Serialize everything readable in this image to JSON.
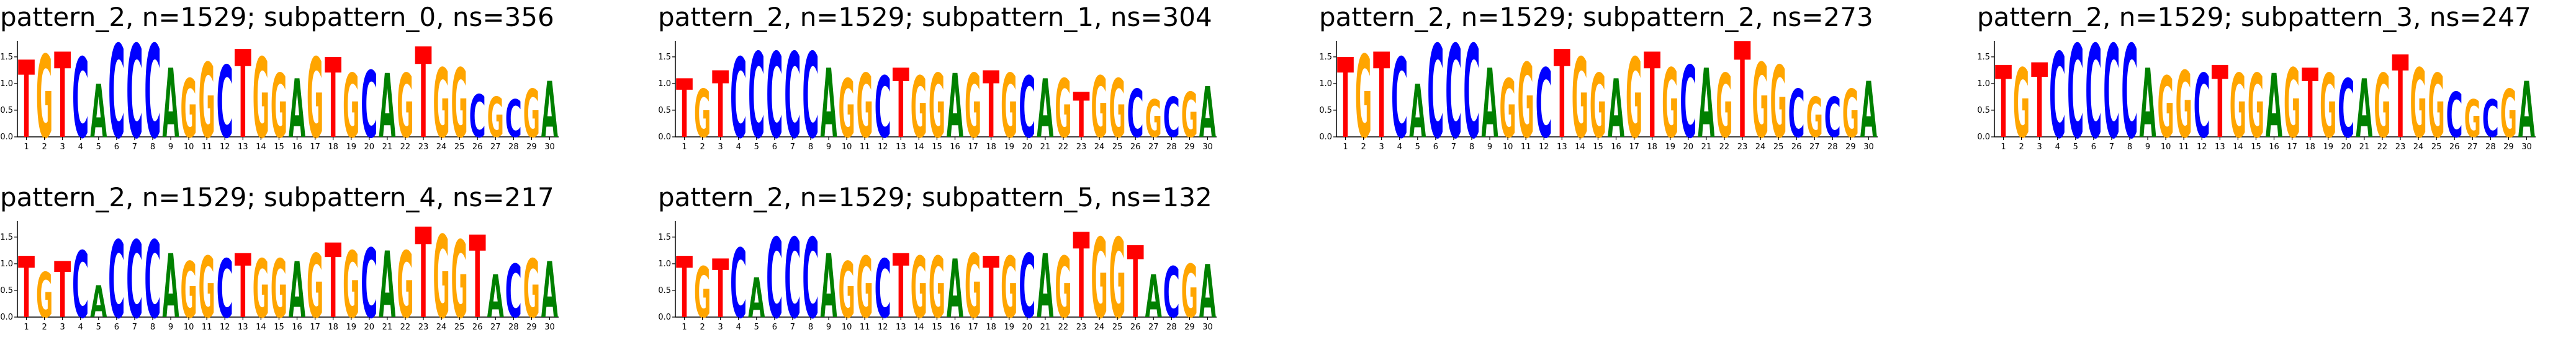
{
  "figure": {
    "colors": {
      "A": "#008000",
      "C": "#0000ff",
      "G": "#ffa500",
      "T": "#ff0000"
    }
  },
  "chart_data": [
    {
      "type": "sequence-logo",
      "title": "pattern_2, n=1529; subpattern_0, ns=356",
      "ylim": [
        0,
        1.8
      ],
      "yticks": [
        "0.0",
        "0.5",
        "1.0",
        "1.5"
      ],
      "positions": 30,
      "consensus": "TGTCACCCAGGCTGGAGTGCAGTGGCGCGA",
      "heights": [
        1.45,
        1.55,
        1.6,
        1.5,
        1.0,
        1.75,
        1.75,
        1.75,
        1.3,
        1.1,
        1.4,
        1.35,
        1.65,
        1.5,
        1.2,
        1.1,
        1.5,
        1.5,
        1.2,
        1.25,
        1.2,
        1.2,
        1.7,
        1.3,
        1.3,
        0.8,
        0.75,
        0.7,
        0.9,
        1.05
      ]
    },
    {
      "type": "sequence-logo",
      "title": "pattern_2, n=1529; subpattern_1, ns=304",
      "ylim": [
        0,
        1.8
      ],
      "yticks": [
        "0.0",
        "0.5",
        "1.0",
        "1.5"
      ],
      "positions": 30,
      "consensus": "TGTCCCCCAGGCTGGAGTGCAGTGGCGCGA",
      "heights": [
        1.1,
        0.9,
        1.25,
        1.5,
        1.6,
        1.6,
        1.6,
        1.6,
        1.3,
        1.1,
        1.2,
        1.15,
        1.3,
        1.15,
        1.2,
        1.2,
        1.2,
        1.25,
        1.2,
        1.15,
        1.1,
        1.1,
        0.85,
        1.15,
        1.1,
        0.9,
        0.7,
        0.75,
        0.85,
        0.95
      ]
    },
    {
      "type": "sequence-logo",
      "title": "pattern_2, n=1529; subpattern_2, ns=273",
      "ylim": [
        0,
        1.8
      ],
      "yticks": [
        "0.0",
        "0.5",
        "1.0",
        "1.5"
      ],
      "positions": 30,
      "consensus": "TGTCACCCAGGCTGGAGTGCAGTGGCGCGA",
      "heights": [
        1.5,
        1.55,
        1.6,
        1.5,
        1.0,
        1.75,
        1.75,
        1.75,
        1.3,
        1.1,
        1.4,
        1.3,
        1.65,
        1.5,
        1.2,
        1.1,
        1.5,
        1.6,
        1.3,
        1.35,
        1.3,
        1.2,
        1.8,
        1.4,
        1.35,
        0.9,
        0.75,
        0.75,
        0.9,
        1.05
      ]
    },
    {
      "type": "sequence-logo",
      "title": "pattern_2, n=1529; subpattern_3, ns=247",
      "ylim": [
        0,
        1.8
      ],
      "yticks": [
        "0.0",
        "0.5",
        "1.0",
        "1.5"
      ],
      "positions": 30,
      "consensus": "TGTCCCCCAGGCTGGAGTGCAGTGGCGCGA",
      "heights": [
        1.35,
        1.3,
        1.4,
        1.6,
        1.75,
        1.75,
        1.75,
        1.75,
        1.3,
        1.15,
        1.25,
        1.2,
        1.35,
        1.2,
        1.2,
        1.2,
        1.3,
        1.3,
        1.2,
        1.1,
        1.1,
        1.2,
        1.55,
        1.3,
        1.2,
        0.85,
        0.7,
        0.7,
        0.9,
        1.05
      ]
    },
    {
      "type": "sequence-logo",
      "title": "pattern_2, n=1529; subpattern_4, ns=217",
      "ylim": [
        0,
        1.8
      ],
      "yticks": [
        "0.0",
        "0.5",
        "1.0",
        "1.5"
      ],
      "positions": 30,
      "consensus": "TGTCACCCAGGCTGGAGTGCAGTGGTACGA",
      "heights": [
        1.15,
        0.85,
        1.05,
        1.25,
        0.6,
        1.45,
        1.45,
        1.45,
        1.2,
        1.05,
        1.15,
        1.1,
        1.2,
        1.1,
        1.1,
        1.05,
        1.2,
        1.4,
        1.25,
        1.3,
        1.25,
        1.25,
        1.7,
        1.55,
        1.45,
        1.55,
        0.8,
        1.0,
        1.1,
        1.05
      ]
    },
    {
      "type": "sequence-logo",
      "title": "pattern_2, n=1529; subpattern_5, ns=132",
      "ylim": [
        0,
        1.8
      ],
      "yticks": [
        "0.0",
        "0.5",
        "1.0",
        "1.5"
      ],
      "positions": 30,
      "consensus": "TGTCACCCAGGCTGGAGTGCAGTGGTACGA",
      "heights": [
        1.15,
        0.95,
        1.1,
        1.3,
        0.75,
        1.5,
        1.5,
        1.5,
        1.2,
        1.05,
        1.15,
        1.1,
        1.2,
        1.15,
        1.15,
        1.1,
        1.2,
        1.15,
        1.15,
        1.2,
        1.2,
        1.15,
        1.6,
        1.5,
        1.5,
        1.35,
        0.8,
        0.95,
        1.0,
        1.0
      ]
    }
  ]
}
